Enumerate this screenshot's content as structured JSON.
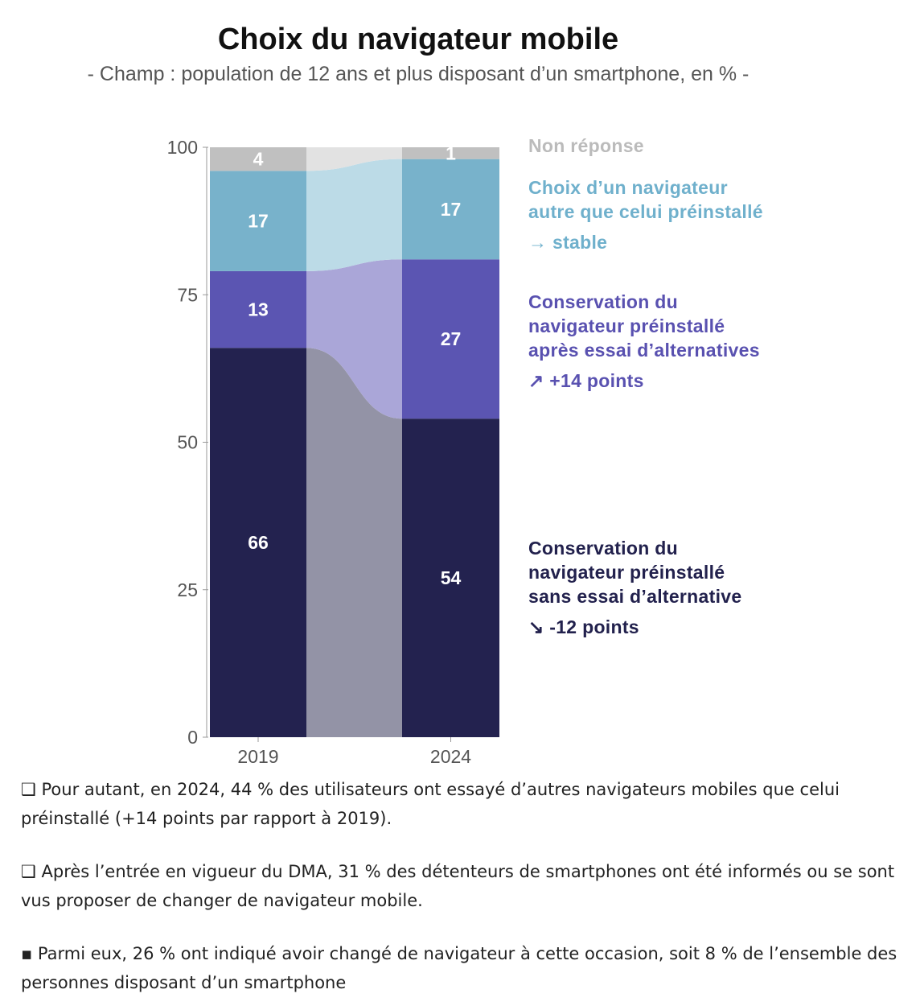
{
  "chart_data": {
    "type": "bar",
    "stacked": true,
    "title": "Choix du navigateur mobile",
    "subtitle": "- Champ : population de 12 ans et plus disposant d’un smartphone, en % -",
    "categories": [
      "2019",
      "2024"
    ],
    "ylim": [
      0,
      100
    ],
    "yticks": [
      "0",
      "25",
      "50",
      "75",
      "100"
    ],
    "series": [
      {
        "name": "Conservation du navigateur préinstallé sans essai d’alternative",
        "values": [
          66,
          54
        ],
        "color": "#23224f",
        "flow_color": "#9393a6",
        "lines": [
          "Conservation du",
          "navigateur préinstallé",
          "sans essai d’alternative"
        ],
        "change": "↘ -12 points"
      },
      {
        "name": "Conservation du navigateur préinstallé après essai d’alternatives",
        "values": [
          13,
          27
        ],
        "color": "#5b55b2",
        "flow_color": "#aaa6d8",
        "lines": [
          "Conservation du",
          "navigateur préinstallé",
          "après essai d’alternatives"
        ],
        "change": "↗ +14 points"
      },
      {
        "name": "Choix d’un navigateur autre que celui préinstallé",
        "values": [
          17,
          17
        ],
        "color": "#78b2cb",
        "flow_color": "#bcdbe7",
        "lines": [
          "Choix d’un navigateur",
          "autre que celui préinstallé"
        ],
        "change": "→ stable"
      },
      {
        "name": "Non réponse",
        "values": [
          4,
          1
        ],
        "color": "#c0c0c0",
        "flow_color": "#e2e2e2",
        "lines": [
          "Non réponse"
        ],
        "change": ""
      }
    ],
    "legend_colors": [
      "#22214d",
      "#5951b0",
      "#6fb0cc",
      "#bbbbbb"
    ],
    "legend": "right"
  },
  "paragraphs": [
    "❑ Pour autant, en 2024, 44 % des utilisateurs ont essayé d’autres navigateurs mobiles que celui préinstallé (+14 points par rapport à 2019).",
    "❑ Après l’entrée en vigueur du DMA, 31 % des détenteurs de smartphones ont été informés ou se sont vus proposer de changer de navigateur mobile.",
    "▪ Parmi eux, 26 % ont indiqué avoir changé de navigateur à cette occasion, soit 8 % de l’ensemble des personnes disposant d’un smartphone"
  ]
}
